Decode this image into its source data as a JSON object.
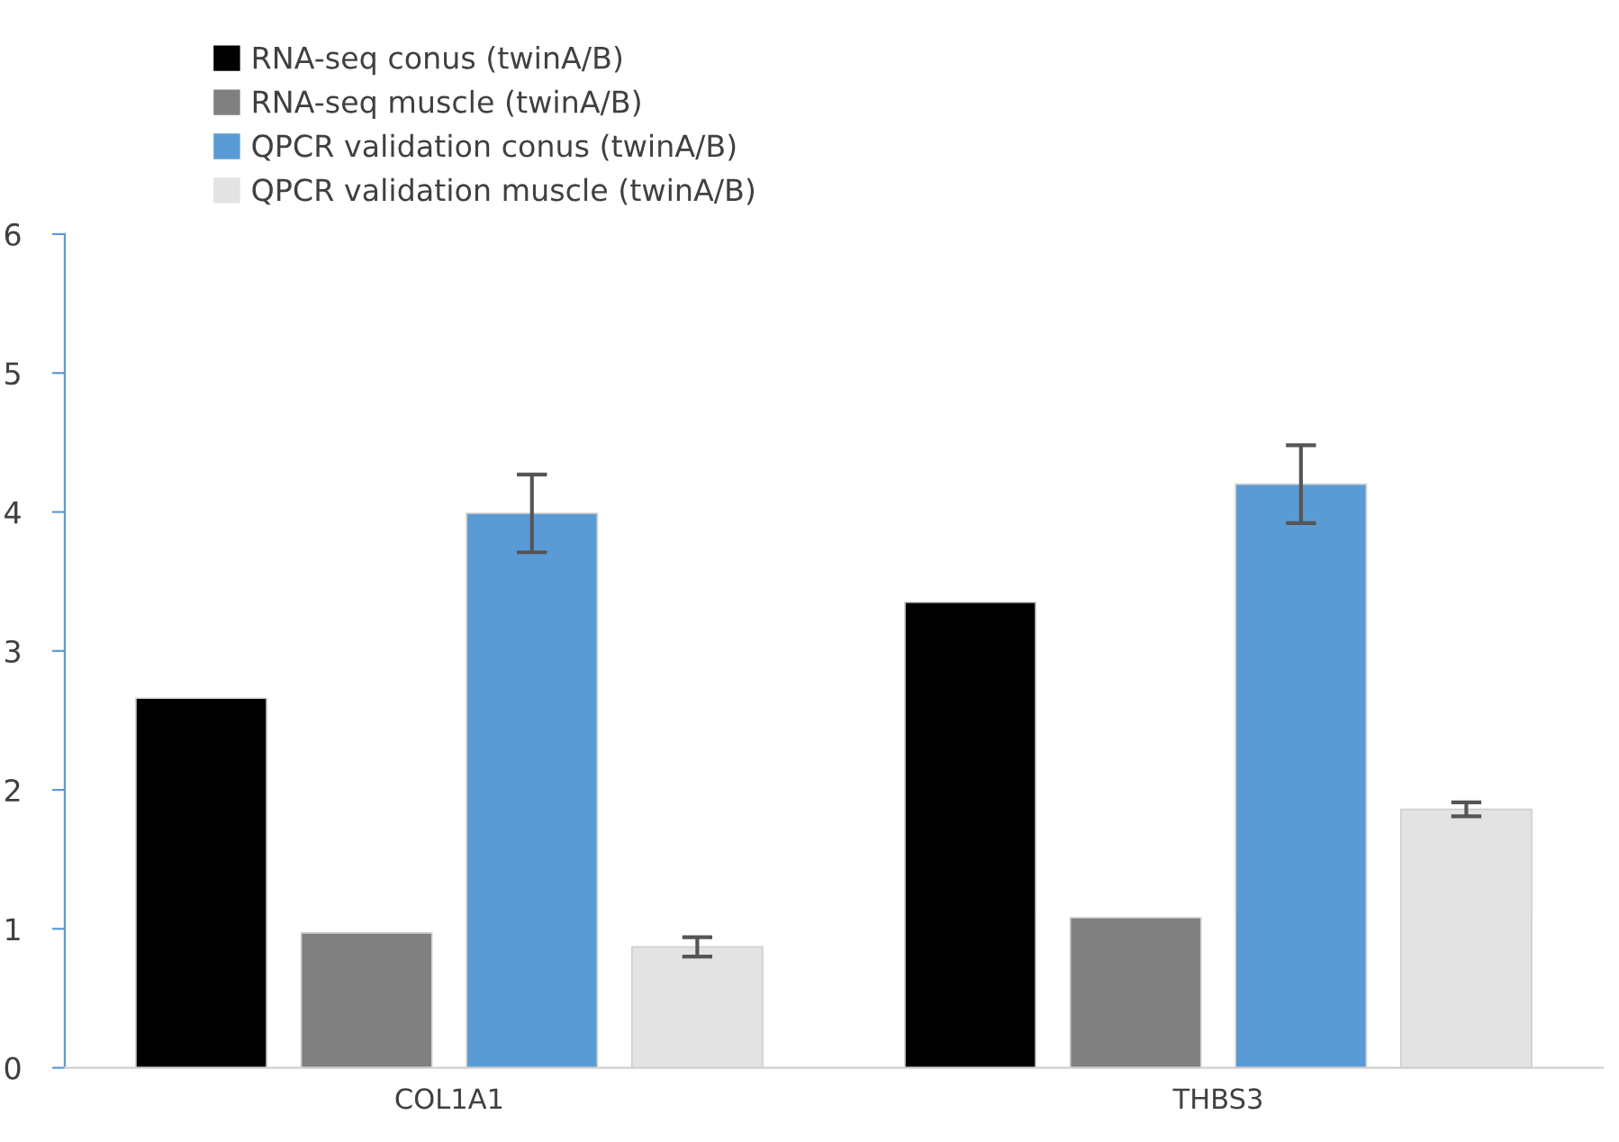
{
  "chart_data": {
    "type": "bar",
    "categories": [
      "COL1A1",
      "THBS3"
    ],
    "series": [
      {
        "name": "RNA-seq conus (twinA/B)",
        "color": "#000000",
        "values": [
          2.66,
          3.35
        ]
      },
      {
        "name": "RNA-seq muscle (twinA/B)",
        "color": "#808080",
        "values": [
          0.97,
          1.08
        ]
      },
      {
        "name": "QPCR validation conus (twinA/B)",
        "color": "#5b9bd5",
        "values": [
          3.99,
          4.2
        ],
        "errors": [
          0.28,
          0.28
        ]
      },
      {
        "name": "QPCR validation muscle (twinA/B)",
        "color": "#e3e3e3",
        "values": [
          0.87,
          1.86
        ],
        "errors": [
          0.07,
          0.05
        ]
      }
    ],
    "ylim": [
      0,
      6
    ],
    "yticks": [
      0,
      1,
      2,
      3,
      4,
      5,
      6
    ],
    "grid": false,
    "legend": "top left"
  }
}
